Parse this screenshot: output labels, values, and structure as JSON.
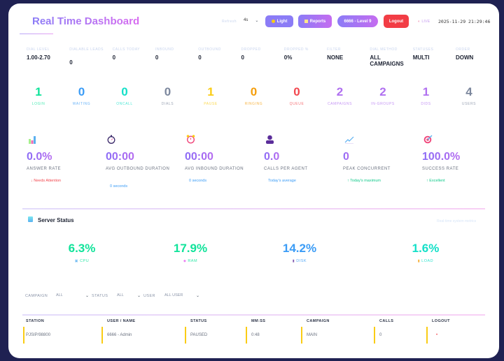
{
  "header": {
    "title": "Real Time Dashboard",
    "refresh_label": "Refresh",
    "refresh_value": "4s",
    "light_label": "Light",
    "reports_label": "Reports",
    "user_level_label": "6666 - Level 9",
    "logout_label": "Logout",
    "live_label": "LIVE",
    "datetime": "2025-11-29 21:29:46"
  },
  "summary": [
    {
      "label": "DIAL LEVEL",
      "value": "1.00-2.70"
    },
    {
      "label": "DIALABLE LEADS",
      "value": "0"
    },
    {
      "label": "CALLS TODAY",
      "value": "0"
    },
    {
      "label": "INBOUND",
      "value": "0"
    },
    {
      "label": "OUTBOUND",
      "value": "0"
    },
    {
      "label": "DROPPED",
      "value": "0"
    },
    {
      "label": "DROPPED %",
      "value": "0%"
    },
    {
      "label": "FILTER",
      "value": "NONE"
    },
    {
      "label": "DIAL METHOD",
      "value": "ALL CAMPAIGNS"
    },
    {
      "label": "STATUSES",
      "value": "MULTI"
    },
    {
      "label": "ORDER",
      "value": "DOWN"
    }
  ],
  "counters": [
    {
      "label": "LOGIN",
      "value": "1",
      "color": "#10e39a"
    },
    {
      "label": "WAITING",
      "value": "0",
      "color": "#3b9cf6"
    },
    {
      "label": "ONCALL",
      "value": "0",
      "color": "#14e0c8"
    },
    {
      "label": "DIALS",
      "value": "0",
      "color": "#7c879d"
    },
    {
      "label": "PAUSE",
      "value": "1",
      "color": "#facc15"
    },
    {
      "label": "RINGING",
      "value": "0",
      "color": "#f59e0b"
    },
    {
      "label": "QUEUE",
      "value": "0",
      "color": "#f2474e"
    },
    {
      "label": "CAMPAIGNS",
      "value": "2",
      "color": "#b070f0"
    },
    {
      "label": "IN-GROUPS",
      "value": "2",
      "color": "#b070f0"
    },
    {
      "label": "DIDS",
      "value": "1",
      "color": "#b070f0"
    },
    {
      "label": "USERS",
      "value": "4",
      "color": "#7c879d"
    }
  ],
  "metrics": [
    {
      "icon": "bar-chart-icon",
      "value": "0.0%",
      "label": "ANSWER RATE",
      "note": "↓ Needs Attention",
      "note_color": "#f2474e"
    },
    {
      "icon": "stopwatch-icon",
      "value": "00:00",
      "label": "AVG OUTBOUND DURATION",
      "note": "0 seconds",
      "note_color": "#3b9cf6"
    },
    {
      "icon": "alarm-clock-icon",
      "value": "00:00",
      "label": "AVG INBOUND DURATION",
      "note": "0 seconds",
      "note_color": "#3b9cf6"
    },
    {
      "icon": "agent-icon",
      "value": "0.0",
      "label": "CALLS PER AGENT",
      "note": "Today's average",
      "note_color": "#3b9cf6"
    },
    {
      "icon": "trend-line-icon",
      "value": "0",
      "label": "PEAK CONCURRENT",
      "note": "↑ Today's maximum",
      "note_color": "#10c98a"
    },
    {
      "icon": "target-icon",
      "value": "100.0%",
      "label": "SUCCESS RATE",
      "note": "↑ Excellent",
      "note_color": "#10c98a"
    }
  ],
  "server": {
    "title": "Server Status",
    "subtitle": "Real-time system metrics",
    "stats": [
      {
        "label": "CPU",
        "value": "6.3%",
        "color": "#10e39a"
      },
      {
        "label": "RAM",
        "value": "17.9%",
        "color": "#10e39a"
      },
      {
        "label": "DISK",
        "value": "14.2%",
        "color": "#3b9cf6"
      },
      {
        "label": "LOAD",
        "value": "1.6%",
        "color": "#14e0c8"
      }
    ]
  },
  "filters": {
    "campaign_label": "CAMPAIGN",
    "campaign_value": "ALL",
    "status_label": "STATUS",
    "status_value": "ALL",
    "user_label": "USER",
    "user_value": "ALL USER"
  },
  "table": {
    "headers": [
      "STATION",
      "USER / NAME",
      "STATUS",
      "MM:SS",
      "CAMPAIGN",
      "CALLS",
      "LOGOUT"
    ],
    "rows": [
      [
        "PJSIP/98800",
        "6666 - Admin",
        "PAUSED",
        "0:48",
        "MAIN",
        "0",
        "•"
      ]
    ]
  }
}
